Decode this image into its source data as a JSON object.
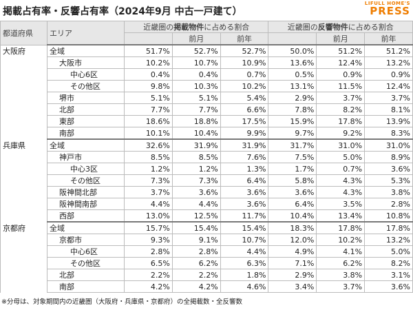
{
  "header": {
    "title": "掲載占有率・反響占有率（2024年9月 中古一戸建て）",
    "logo_top": "LIFULL HOME'S",
    "logo_bottom": "PRESS"
  },
  "table": {
    "columns": [
      "都道府県",
      "エリア"
    ],
    "group_headers": [
      [
        "近畿圏の",
        "掲載物件",
        "に占める割合"
      ],
      [
        "近畿圏の",
        "反響物件",
        "に占める割合"
      ]
    ],
    "sub_headers": [
      "前月",
      "前年"
    ],
    "rows": [
      {
        "pref": "大阪府",
        "area": "全域",
        "values": [
          "51.7%",
          "52.7%",
          "52.7%",
          "50.0%",
          "51.2%",
          "51.2%"
        ]
      },
      {
        "area": "大阪市",
        "values": [
          "10.2%",
          "10.7%",
          "10.9%",
          "13.6%",
          "12.4%",
          "13.2%"
        ]
      },
      {
        "area": "中心6区",
        "values": [
          "0.4%",
          "0.4%",
          "0.7%",
          "0.5%",
          "0.9%",
          "0.9%"
        ]
      },
      {
        "area": "その他区",
        "values": [
          "9.8%",
          "10.3%",
          "10.2%",
          "13.1%",
          "11.5%",
          "12.4%"
        ]
      },
      {
        "area": "堺市",
        "values": [
          "5.1%",
          "5.1%",
          "5.4%",
          "2.9%",
          "3.7%",
          "3.7%"
        ]
      },
      {
        "area": "北部",
        "values": [
          "7.7%",
          "7.7%",
          "6.6%",
          "7.8%",
          "8.2%",
          "8.1%"
        ]
      },
      {
        "area": "東部",
        "values": [
          "18.6%",
          "18.8%",
          "17.5%",
          "15.9%",
          "17.8%",
          "13.9%"
        ]
      },
      {
        "area": "南部",
        "values": [
          "10.1%",
          "10.4%",
          "9.9%",
          "9.7%",
          "9.2%",
          "8.3%"
        ]
      },
      {
        "pref": "兵庫県",
        "area": "全域",
        "values": [
          "32.6%",
          "31.9%",
          "31.9%",
          "31.7%",
          "31.0%",
          "31.0%"
        ]
      },
      {
        "area": "神戸市",
        "values": [
          "8.5%",
          "8.5%",
          "7.6%",
          "7.5%",
          "5.0%",
          "8.9%"
        ]
      },
      {
        "area": "中心3区",
        "values": [
          "1.2%",
          "1.2%",
          "1.3%",
          "1.7%",
          "0.7%",
          "3.6%"
        ]
      },
      {
        "area": "その他区",
        "values": [
          "7.3%",
          "7.3%",
          "6.4%",
          "5.8%",
          "4.3%",
          "5.3%"
        ]
      },
      {
        "area": "阪神間北部",
        "values": [
          "3.7%",
          "3.6%",
          "3.6%",
          "3.6%",
          "4.3%",
          "3.8%"
        ]
      },
      {
        "area": "阪神間南部",
        "values": [
          "4.4%",
          "4.4%",
          "3.6%",
          "6.4%",
          "3.5%",
          "2.8%"
        ]
      },
      {
        "area": "西部",
        "values": [
          "13.0%",
          "12.5%",
          "11.7%",
          "10.4%",
          "13.4%",
          "10.8%"
        ]
      },
      {
        "pref": "京都府",
        "area": "全域",
        "values": [
          "15.7%",
          "15.4%",
          "15.4%",
          "18.3%",
          "17.8%",
          "17.8%"
        ]
      },
      {
        "area": "京都市",
        "values": [
          "9.3%",
          "9.1%",
          "10.7%",
          "12.0%",
          "10.2%",
          "13.2%"
        ]
      },
      {
        "area": "中心6区",
        "values": [
          "2.8%",
          "2.8%",
          "4.4%",
          "4.9%",
          "4.1%",
          "5.0%"
        ]
      },
      {
        "area": "その他区",
        "values": [
          "6.5%",
          "6.2%",
          "6.3%",
          "7.1%",
          "6.2%",
          "8.2%"
        ]
      },
      {
        "area": "北部",
        "values": [
          "2.2%",
          "2.2%",
          "1.8%",
          "2.9%",
          "3.8%",
          "3.1%"
        ]
      },
      {
        "area": "南部",
        "values": [
          "4.2%",
          "4.2%",
          "4.6%",
          "3.4%",
          "3.7%",
          "3.6%"
        ]
      }
    ]
  },
  "footnote": "※分母は、対象期間内の近畿圏（大阪府・兵庫県・京都府）の全掲載数・全反響数"
}
